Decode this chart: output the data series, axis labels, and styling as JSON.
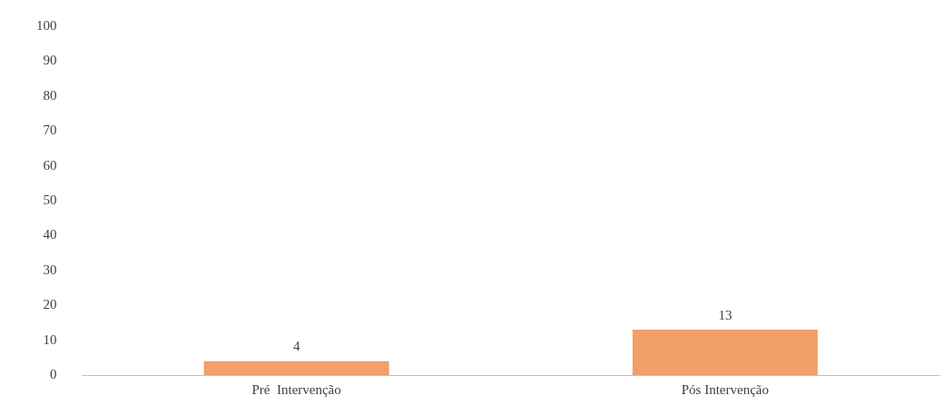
{
  "chart_data": {
    "type": "bar",
    "categories": [
      "Pré  Intervenção",
      "Pós Intervenção"
    ],
    "values": [
      4,
      13
    ],
    "color": "#f0a068",
    "ylim": [
      0,
      100
    ],
    "yticks": [
      0,
      10,
      20,
      30,
      40,
      50,
      60,
      70,
      80,
      90,
      100
    ],
    "grid": false,
    "data_labels": true
  }
}
